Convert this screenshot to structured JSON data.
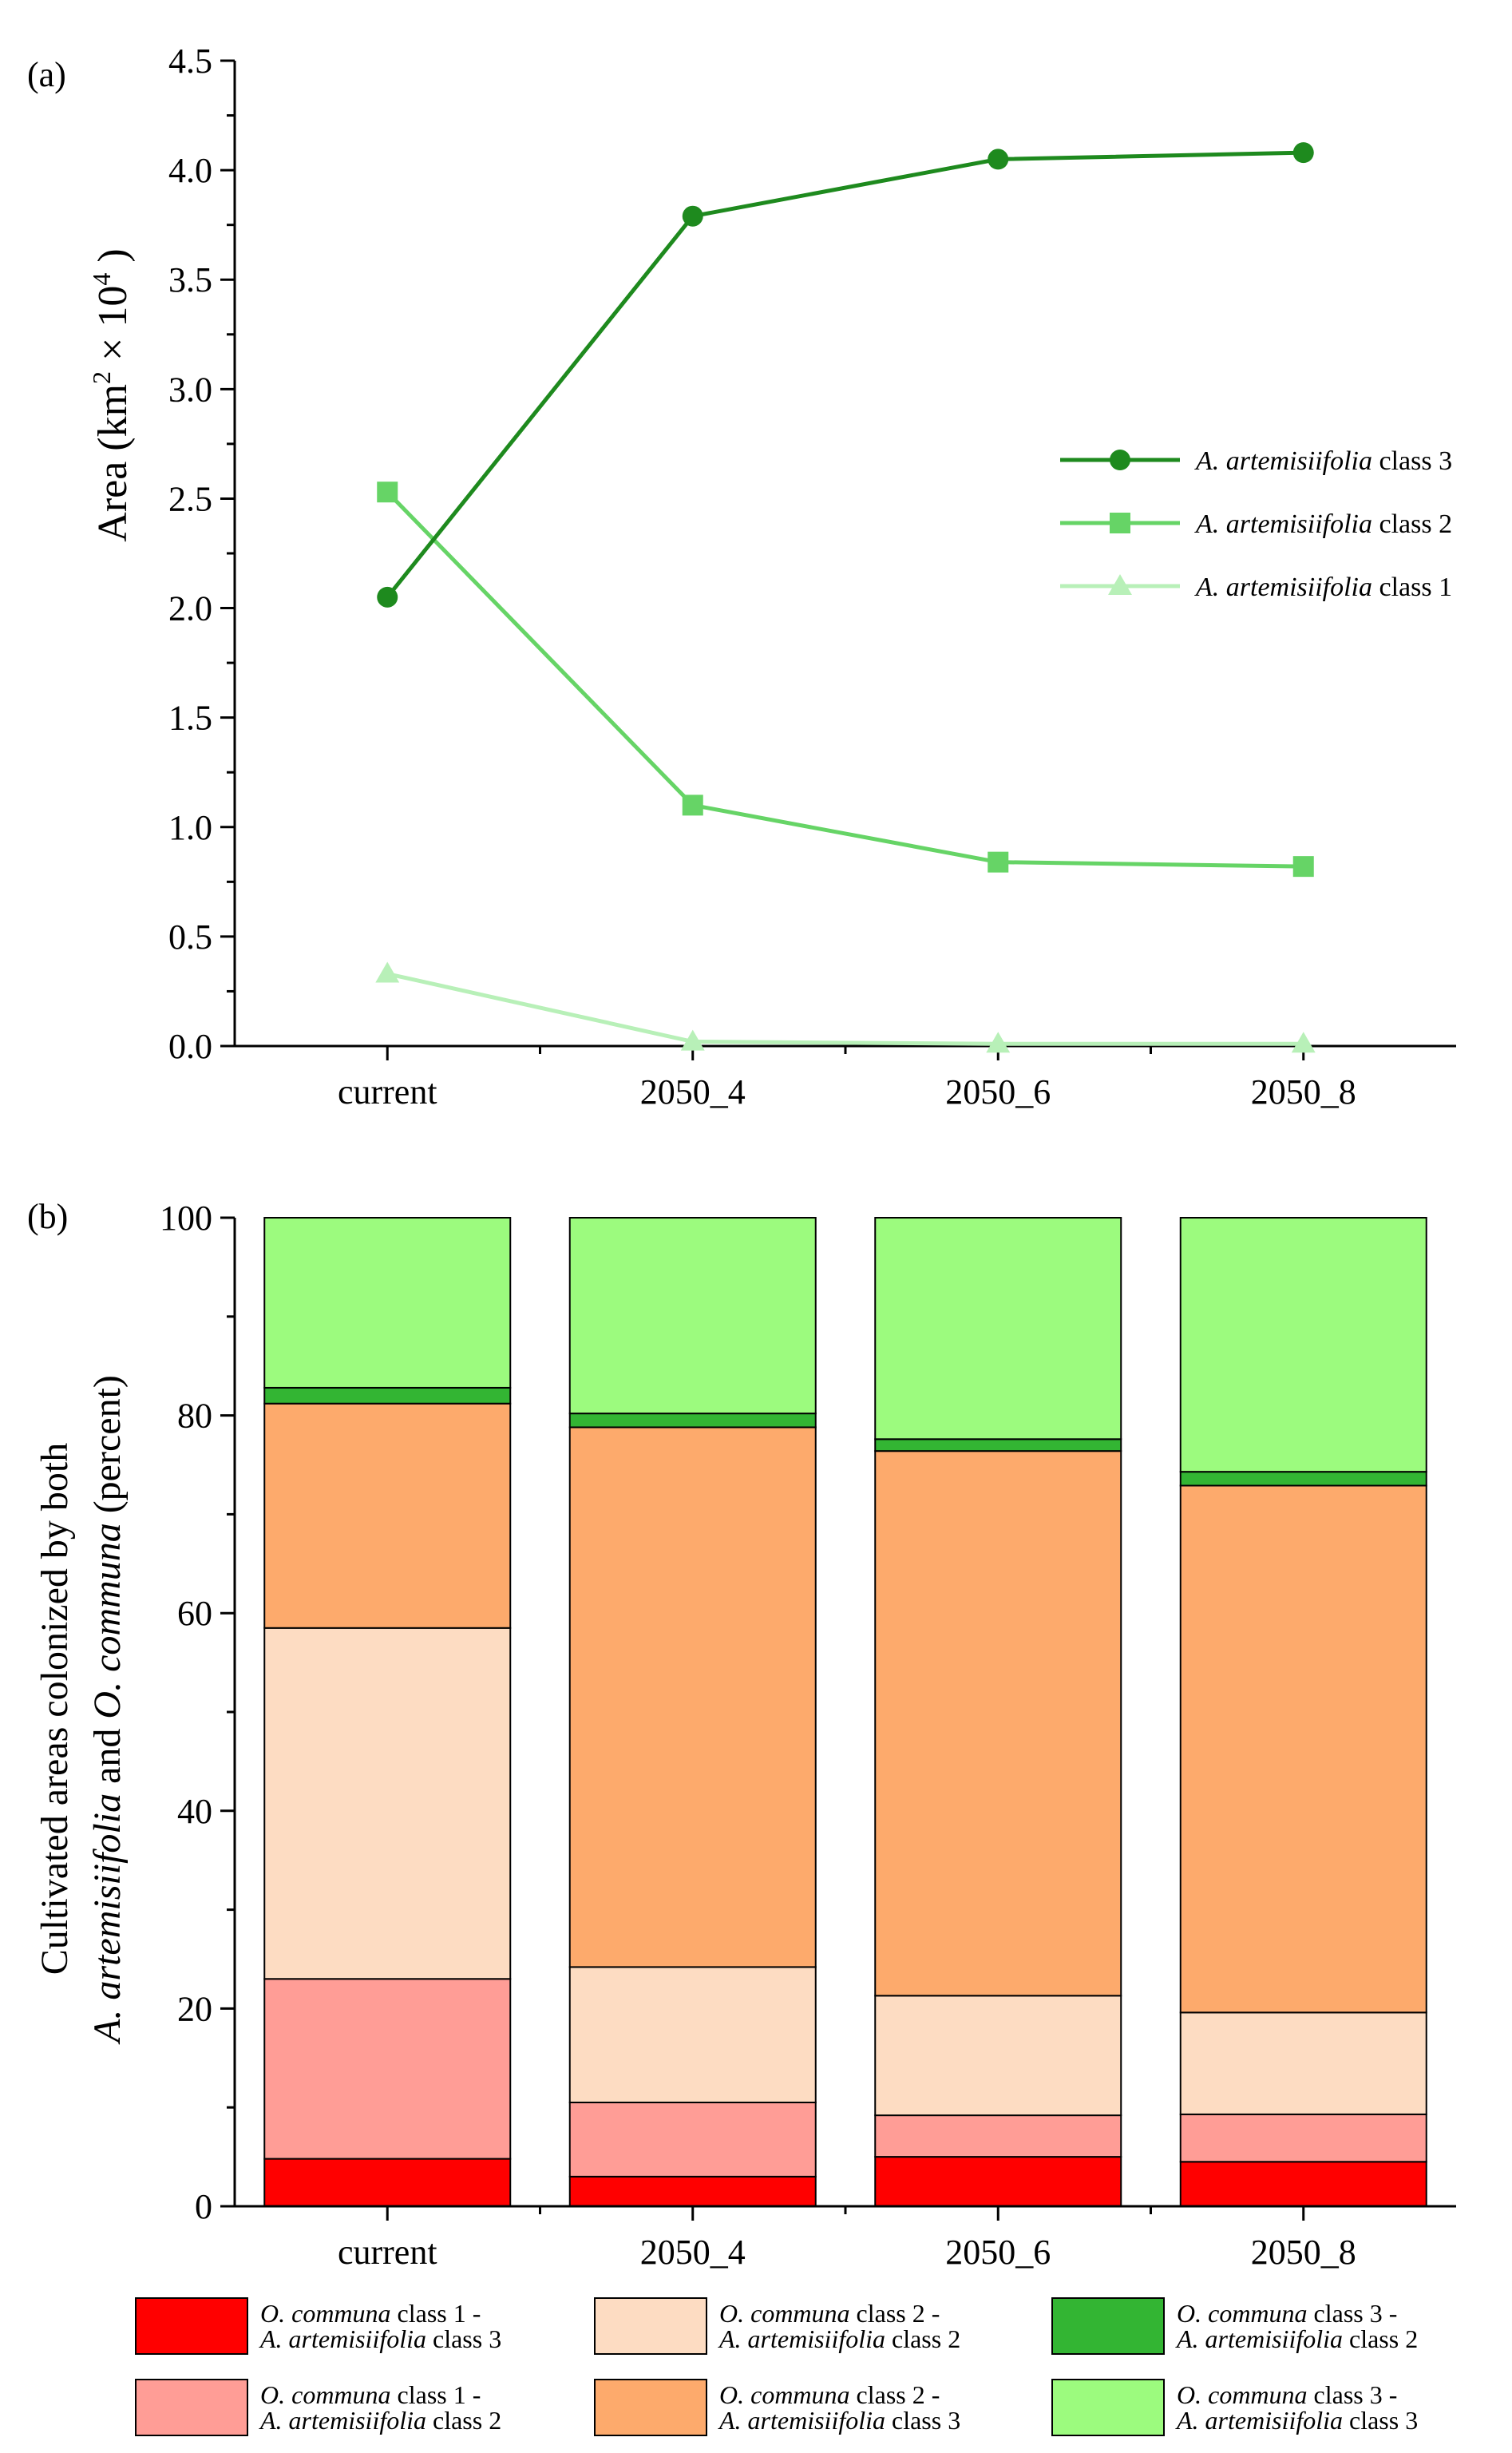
{
  "chart_data": [
    {
      "panel_label": "(a)",
      "type": "line",
      "categories": [
        "current",
        "2050_4",
        "2050_6",
        "2050_8"
      ],
      "ylabel": "Area (km² × 10⁴ )",
      "ylabel_parts": {
        "main": "Area (km",
        "sup1": "2",
        "times": " × 10",
        "sup2": "4",
        "close": " )"
      },
      "ylim": [
        0,
        4.5
      ],
      "yticks": [
        "0.0",
        "0.5",
        "1.0",
        "1.5",
        "2.0",
        "2.5",
        "3.0",
        "3.5",
        "4.0",
        "4.5"
      ],
      "grid": false,
      "legend_position": "right",
      "series": [
        {
          "name": "A. artemisiifolia class 3",
          "name_italic": "A. artemisiifolia",
          "name_rest": " class 3",
          "marker": "circle",
          "color": "#1e8a1e",
          "values": [
            2.05,
            3.79,
            4.05,
            4.08
          ]
        },
        {
          "name": "A. artemisiifolia class 2",
          "name_italic": "A. artemisiifolia",
          "name_rest": " class 2",
          "marker": "square",
          "color": "#66d466",
          "values": [
            2.53,
            1.1,
            0.84,
            0.82
          ]
        },
        {
          "name": "A. artemisiifolia class 1",
          "name_italic": "A. artemisiifolia",
          "name_rest": " class 1",
          "marker": "triangle",
          "color": "#b8f0b8",
          "values": [
            0.33,
            0.02,
            0.01,
            0.01
          ]
        }
      ]
    },
    {
      "panel_label": "(b)",
      "type": "bar",
      "stacked": true,
      "categories": [
        "current",
        "2050_4",
        "2050_6",
        "2050_8"
      ],
      "ylabel_line1": "Cultivated areas colonized by both",
      "ylabel_line2_parts": {
        "italic1": "A. artemisiifolia",
        "plain1": " and ",
        "italic2": "O. communa",
        "plain2": " (percent)"
      },
      "ylim": [
        0,
        100
      ],
      "yticks": [
        "0",
        "20",
        "40",
        "60",
        "80",
        "100"
      ],
      "legend_position": "bottom",
      "series": [
        {
          "name": "O. communa class 1 - A. artemisiifolia class 3",
          "line1_italic": "O. communa",
          "line1_rest": " class 1 -",
          "line2_italic": "A. artemisiifolia",
          "line2_rest": " class 3",
          "color": "#ff0000",
          "values": [
            4.8,
            3.0,
            5.0,
            4.5
          ]
        },
        {
          "name": "O. communa class 1 - A. artemisiifolia class 2",
          "line1_italic": "O. communa",
          "line1_rest": " class 1 -",
          "line2_italic": "A. artemisiifolia",
          "line2_rest": " class 2",
          "color": "#ff9d96",
          "values": [
            18.2,
            7.5,
            4.2,
            4.8
          ]
        },
        {
          "name": "O. communa class 2 - A. artemisiifolia class 2",
          "line1_italic": "O. communa",
          "line1_rest": " class 2 -",
          "line2_italic": "A. artemisiifolia",
          "line2_rest": " class 2",
          "color": "#fddcc2",
          "values": [
            35.5,
            13.7,
            12.1,
            10.3
          ]
        },
        {
          "name": "O. communa class 2 - A. artemisiifolia class 3",
          "line1_italic": "O. communa",
          "line1_rest": " class 2 -",
          "line2_italic": "A. artemisiifolia",
          "line2_rest": " class 3",
          "color": "#fdaa6c",
          "values": [
            22.7,
            54.6,
            55.1,
            53.3
          ]
        },
        {
          "name": "O. communa class 3 - A. artemisiifolia class 2",
          "line1_italic": "O. communa",
          "line1_rest": " class 3 -",
          "line2_italic": "A. artemisiifolia",
          "line2_rest": " class 2",
          "color": "#33b533",
          "values": [
            1.6,
            1.4,
            1.2,
            1.4
          ]
        },
        {
          "name": "O. communa class 3 - A. artemisiifolia class 3",
          "line1_italic": "O. communa",
          "line1_rest": " class 3 -",
          "line2_italic": "A. artemisiifolia",
          "line2_rest": " class 3",
          "color": "#9cfb7e",
          "values": [
            17.2,
            19.8,
            22.4,
            25.7
          ]
        }
      ]
    }
  ]
}
